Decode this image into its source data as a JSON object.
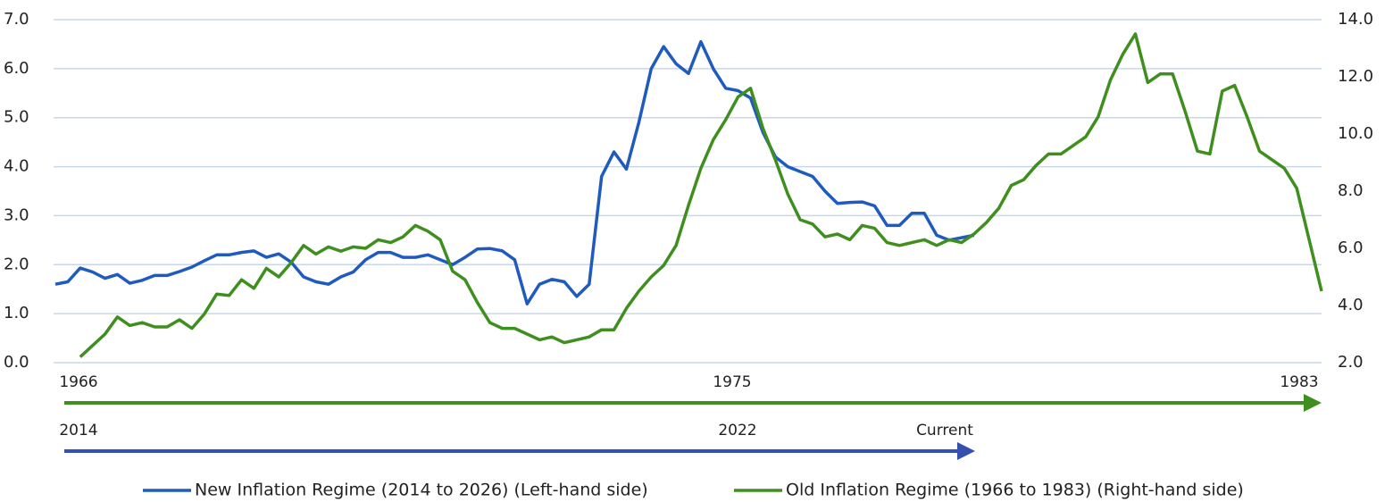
{
  "chart_data": {
    "type": "line",
    "annotations": [
      "1966",
      "1975",
      "1983",
      "2014",
      "2022",
      "Current"
    ],
    "ylim": [
      0,
      7
    ],
    "yticks": [
      {
        "value": 0,
        "label": "0.0"
      },
      {
        "value": 1,
        "label": "1.0"
      },
      {
        "value": 2,
        "label": "2.0"
      },
      {
        "value": 3,
        "label": "3.0"
      },
      {
        "value": 4,
        "label": "4.0"
      },
      {
        "value": 5,
        "label": "5.0"
      },
      {
        "value": 6,
        "label": "6.0"
      },
      {
        "value": 7,
        "label": "7.0"
      }
    ],
    "y2lim": [
      2,
      14
    ],
    "y2ticks": [
      {
        "value": 2,
        "label": "2.0"
      },
      {
        "value": 4,
        "label": "4.0"
      },
      {
        "value": 6,
        "label": "6.0"
      },
      {
        "value": 8,
        "label": "8.0"
      },
      {
        "value": 10,
        "label": "10.0"
      },
      {
        "value": 12,
        "label": "12.0"
      },
      {
        "value": 14,
        "label": "14.0"
      }
    ],
    "grid": true,
    "legend": "bottom",
    "series": [
      {
        "name": "New Inflation Regime (2014 to 2026) (Left-hand side)",
        "color": "#1f5bbf",
        "axis": "y",
        "values": [
          1.6,
          1.65,
          1.93,
          1.85,
          1.72,
          1.8,
          1.62,
          1.68,
          1.78,
          1.78,
          1.86,
          1.95,
          2.08,
          2.2,
          2.2,
          2.25,
          2.28,
          2.15,
          2.22,
          2.05,
          1.75,
          1.65,
          1.6,
          1.75,
          1.85,
          2.1,
          2.25,
          2.25,
          2.15,
          2.15,
          2.2,
          2.1,
          2.0,
          2.15,
          2.32,
          2.33,
          2.28,
          2.1,
          1.2,
          1.6,
          1.7,
          1.65,
          1.35,
          1.6,
          3.8,
          4.3,
          3.95,
          4.9,
          6.0,
          6.45,
          6.1,
          5.9,
          6.55,
          6.0,
          5.6,
          5.55,
          5.4,
          4.7,
          4.2,
          4.0,
          3.9,
          3.8,
          3.5,
          3.25,
          3.27,
          3.28,
          3.2,
          2.8,
          2.8,
          3.05,
          3.05,
          2.6,
          2.5,
          2.55,
          2.6,
          null,
          null,
          null,
          null,
          null,
          null,
          null,
          null,
          null,
          null,
          null,
          null,
          null,
          null,
          null,
          null,
          null,
          null,
          null,
          null,
          null,
          null,
          null,
          null,
          null,
          null,
          null,
          null
        ]
      },
      {
        "name": "Old Inflation Regime (1966 to 1983) (Right-hand side)",
        "color": "#3f8f1f",
        "axis": "y2",
        "values": [
          null,
          null,
          2.2,
          2.6,
          3.0,
          3.6,
          3.3,
          3.4,
          3.25,
          3.25,
          3.5,
          3.2,
          3.7,
          4.4,
          4.35,
          4.9,
          4.6,
          5.3,
          5.0,
          5.5,
          6.1,
          5.8,
          6.05,
          5.9,
          6.05,
          6.0,
          6.3,
          6.2,
          6.4,
          6.8,
          6.6,
          6.3,
          5.2,
          4.9,
          4.1,
          3.4,
          3.2,
          3.2,
          3.0,
          2.8,
          2.9,
          2.7,
          2.8,
          2.9,
          3.15,
          3.15,
          3.9,
          4.5,
          5.0,
          5.4,
          6.1,
          7.5,
          8.8,
          9.8,
          10.5,
          11.3,
          11.6,
          10.2,
          9.1,
          7.9,
          7.0,
          6.85,
          6.4,
          6.5,
          6.3,
          6.8,
          6.7,
          6.2,
          6.1,
          6.2,
          6.3,
          6.1,
          6.3,
          6.2,
          6.5,
          6.9,
          7.4,
          8.2,
          8.4,
          8.9,
          9.3,
          9.3,
          9.6,
          9.9,
          10.6,
          11.9,
          12.8,
          13.5,
          11.8,
          12.1,
          12.1,
          10.8,
          9.4,
          9.3,
          11.5,
          11.7,
          10.6,
          9.4,
          9.1,
          8.8,
          8.1,
          6.3,
          4.5
        ]
      }
    ]
  }
}
